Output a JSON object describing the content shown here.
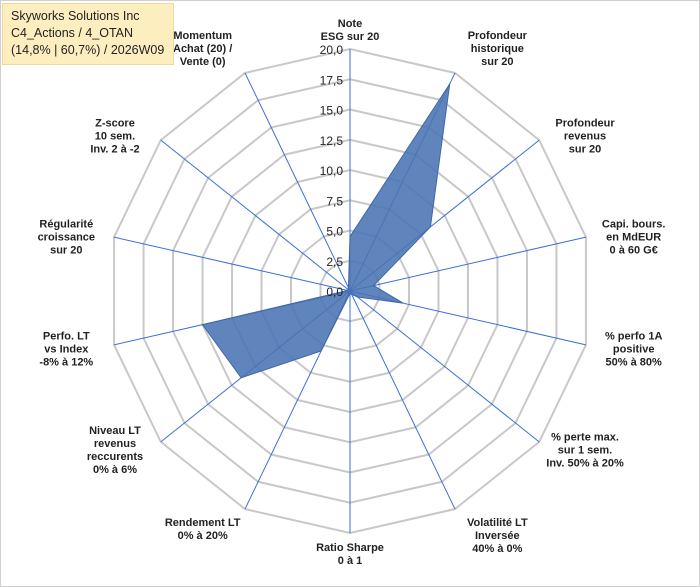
{
  "header": {
    "company": "Skyworks Solutions Inc",
    "portfolio": "C4_Actions / 4_OTAN",
    "stats": "(14,8% | 60,7%) / 2026W09"
  },
  "chart_data": {
    "type": "radar",
    "title": "Skyworks Solutions Inc",
    "rmin": 0,
    "rmax": 20,
    "ticks": [
      "0,0",
      "2,5",
      "5,0",
      "7,5",
      "10,0",
      "12,5",
      "15,0",
      "17,5",
      "20,0"
    ],
    "tick_values": [
      0,
      2.5,
      5,
      7.5,
      10,
      12.5,
      15,
      17.5,
      20
    ],
    "series": [
      {
        "name": "Skyworks Solutions Inc",
        "color": "#4a74b4",
        "values": [
          4.5,
          19.0,
          8.5,
          2.0,
          4.5,
          0.8,
          0.3,
          0.2,
          5.5,
          11.5,
          12.5,
          0.2,
          0.2,
          0.3
        ]
      }
    ],
    "axes": [
      {
        "label": [
          "Note",
          "ESG sur 20"
        ]
      },
      {
        "label": [
          "Profondeur",
          "historique",
          "sur 20"
        ]
      },
      {
        "label": [
          "Profondeur",
          "revenus",
          "sur 20"
        ]
      },
      {
        "label": [
          "Capi. bours.",
          "en MdEUR",
          "0 à 60 G€"
        ]
      },
      {
        "label": [
          "% perfo 1A",
          "positive",
          "50% à 80%"
        ]
      },
      {
        "label": [
          "% perte max.",
          "sur 1 sem.",
          "Inv. 50% à 20%"
        ]
      },
      {
        "label": [
          "Volatilité LT",
          "Inversée",
          "40% à 0%"
        ]
      },
      {
        "label": [
          "Ratio Sharpe",
          "0 à 1"
        ]
      },
      {
        "label": [
          "Rendement LT",
          "0% à 20%"
        ]
      },
      {
        "label": [
          "Niveau LT",
          "revenus",
          "reccurents",
          "0% à 6%"
        ]
      },
      {
        "label": [
          "Perfo. LT",
          "vs Index",
          "-8% à 12%"
        ]
      },
      {
        "label": [
          "Régularité",
          "croissance",
          "sur 20"
        ]
      },
      {
        "label": [
          "Z-score",
          "10 sem.",
          "Inv. 2 à -2"
        ]
      },
      {
        "label": [
          "Momentum",
          "Achat (20) /",
          "Vente (0)"
        ]
      }
    ],
    "grid_color": "#c8c8c8",
    "axis_color": "#3a6fd8"
  }
}
